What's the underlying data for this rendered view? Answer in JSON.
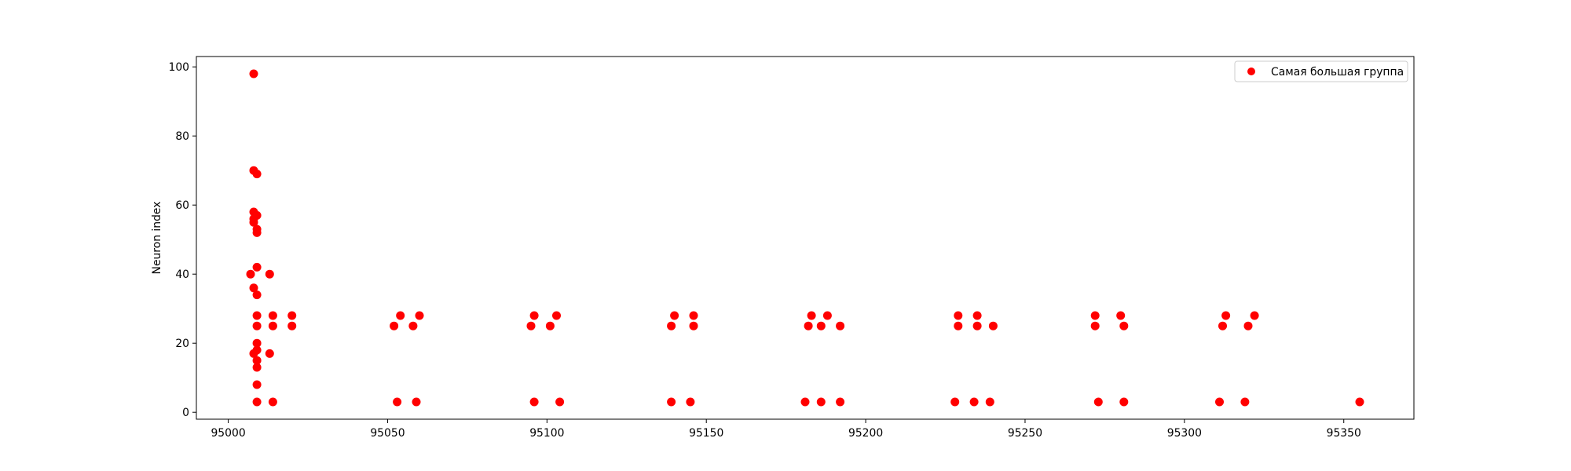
{
  "chart_data": {
    "type": "scatter",
    "title": "",
    "xlabel": "",
    "ylabel": "Neuron index",
    "xlim": [
      94990,
      95372
    ],
    "ylim": [
      -2,
      103
    ],
    "xticks": [
      95000,
      95050,
      95100,
      95150,
      95200,
      95250,
      95300,
      95350
    ],
    "yticks": [
      0,
      20,
      40,
      60,
      80,
      100
    ],
    "grid": false,
    "legend_position": "top-right",
    "series": [
      {
        "name": "Самая большая группа",
        "color": "#ff0000",
        "points": [
          [
            95008,
            98
          ],
          [
            95008,
            70
          ],
          [
            95009,
            69
          ],
          [
            95008,
            58
          ],
          [
            95009,
            57
          ],
          [
            95008,
            56
          ],
          [
            95008,
            55
          ],
          [
            95009,
            53
          ],
          [
            95009,
            52
          ],
          [
            95009,
            42
          ],
          [
            95007,
            40
          ],
          [
            95013,
            40
          ],
          [
            95008,
            36
          ],
          [
            95009,
            34
          ],
          [
            95009,
            28
          ],
          [
            95014,
            28
          ],
          [
            95020,
            28
          ],
          [
            95009,
            25
          ],
          [
            95014,
            25
          ],
          [
            95020,
            25
          ],
          [
            95009,
            20
          ],
          [
            95009,
            18
          ],
          [
            95008,
            17
          ],
          [
            95013,
            17
          ],
          [
            95009,
            15
          ],
          [
            95009,
            13
          ],
          [
            95009,
            8
          ],
          [
            95009,
            3
          ],
          [
            95014,
            3
          ],
          [
            95052,
            25
          ],
          [
            95054,
            28
          ],
          [
            95058,
            25
          ],
          [
            95060,
            28
          ],
          [
            95053,
            3
          ],
          [
            95059,
            3
          ],
          [
            95095,
            25
          ],
          [
            95096,
            28
          ],
          [
            95101,
            25
          ],
          [
            95103,
            28
          ],
          [
            95096,
            3
          ],
          [
            95104,
            3
          ],
          [
            95139,
            25
          ],
          [
            95140,
            28
          ],
          [
            95146,
            25
          ],
          [
            95146,
            28
          ],
          [
            95139,
            3
          ],
          [
            95145,
            3
          ],
          [
            95182,
            25
          ],
          [
            95183,
            28
          ],
          [
            95186,
            25
          ],
          [
            95188,
            28
          ],
          [
            95192,
            25
          ],
          [
            95181,
            3
          ],
          [
            95186,
            3
          ],
          [
            95192,
            3
          ],
          [
            95229,
            25
          ],
          [
            95229,
            28
          ],
          [
            95235,
            25
          ],
          [
            95235,
            28
          ],
          [
            95240,
            25
          ],
          [
            95228,
            3
          ],
          [
            95234,
            3
          ],
          [
            95239,
            3
          ],
          [
            95272,
            25
          ],
          [
            95272,
            28
          ],
          [
            95280,
            28
          ],
          [
            95281,
            25
          ],
          [
            95273,
            3
          ],
          [
            95281,
            3
          ],
          [
            95312,
            25
          ],
          [
            95313,
            28
          ],
          [
            95320,
            25
          ],
          [
            95322,
            28
          ],
          [
            95311,
            3
          ],
          [
            95319,
            3
          ],
          [
            95355,
            3
          ]
        ]
      }
    ]
  }
}
